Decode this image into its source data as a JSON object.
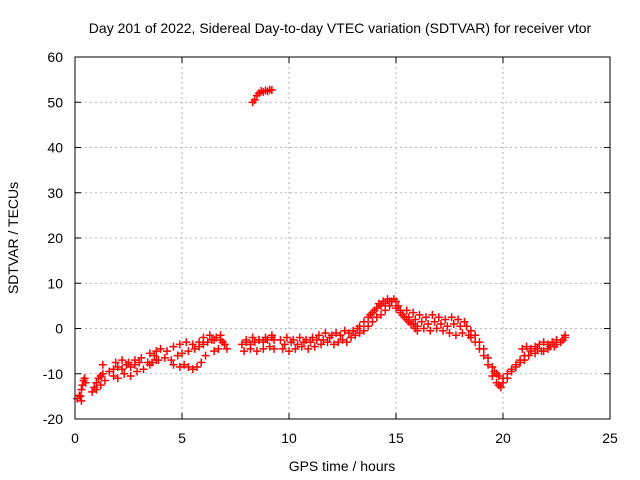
{
  "chart_data": {
    "type": "scatter",
    "title": "Day 201 of 2022, Sidereal Day-to-day VTEC variation (SDTVAR) for receiver vtor",
    "xlabel": "GPS time / hours",
    "ylabel": "SDTVAR / TECUs",
    "xlim": [
      0,
      25
    ],
    "ylim": [
      -20,
      60
    ],
    "xticks": [
      0,
      5,
      10,
      15,
      20,
      25
    ],
    "yticks": [
      -20,
      -10,
      0,
      10,
      20,
      30,
      40,
      50,
      60
    ],
    "grid": true,
    "marker": "+",
    "color": "#ff0000",
    "series": [
      {
        "name": "SDTVAR",
        "points": [
          [
            0.1,
            -15.5
          ],
          [
            0.2,
            -14.8
          ],
          [
            0.3,
            -13.5
          ],
          [
            0.35,
            -12.5
          ],
          [
            0.4,
            -11.5
          ],
          [
            0.45,
            -11.0
          ],
          [
            0.5,
            -12.0
          ],
          [
            0.3,
            -16.0
          ],
          [
            0.25,
            -15.0
          ],
          [
            0.8,
            -14.0
          ],
          [
            0.9,
            -13.0
          ],
          [
            1.0,
            -12.0
          ],
          [
            1.1,
            -11.0
          ],
          [
            1.2,
            -10.5
          ],
          [
            1.3,
            -10.0
          ],
          [
            1.0,
            -13.5
          ],
          [
            1.2,
            -12.5
          ],
          [
            1.4,
            -11.5
          ],
          [
            1.3,
            -8.0
          ],
          [
            1.6,
            -9.5
          ],
          [
            1.8,
            -9.0
          ],
          [
            2.0,
            -8.5
          ],
          [
            2.2,
            -9.0
          ],
          [
            2.4,
            -8.0
          ],
          [
            2.6,
            -8.5
          ],
          [
            2.8,
            -8.0
          ],
          [
            3.0,
            -7.5
          ],
          [
            1.8,
            -10.5
          ],
          [
            2.0,
            -11.0
          ],
          [
            2.3,
            -10.0
          ],
          [
            2.6,
            -10.5
          ],
          [
            2.9,
            -9.5
          ],
          [
            3.2,
            -9.0
          ],
          [
            3.5,
            -8.0
          ],
          [
            3.8,
            -7.0
          ],
          [
            1.9,
            -7.5
          ],
          [
            2.2,
            -7.0
          ],
          [
            2.5,
            -7.5
          ],
          [
            2.8,
            -7.0
          ],
          [
            3.1,
            -6.5
          ],
          [
            3.4,
            -7.5
          ],
          [
            3.7,
            -6.0
          ],
          [
            3.5,
            -5.5
          ],
          [
            3.8,
            -5.0
          ],
          [
            4.0,
            -4.5
          ],
          [
            4.3,
            -5.0
          ],
          [
            4.6,
            -4.0
          ],
          [
            4.9,
            -3.5
          ],
          [
            5.2,
            -3.0
          ],
          [
            5.5,
            -3.5
          ],
          [
            5.8,
            -3.0
          ],
          [
            3.6,
            -7.5
          ],
          [
            3.9,
            -7.0
          ],
          [
            4.2,
            -6.5
          ],
          [
            4.5,
            -7.0
          ],
          [
            4.8,
            -6.0
          ],
          [
            5.0,
            -5.5
          ],
          [
            5.3,
            -5.0
          ],
          [
            5.6,
            -4.5
          ],
          [
            4.6,
            -8.0
          ],
          [
            4.9,
            -8.5
          ],
          [
            5.1,
            -8.0
          ],
          [
            5.3,
            -8.5
          ],
          [
            5.5,
            -9.0
          ],
          [
            5.7,
            -8.5
          ],
          [
            5.9,
            -7.5
          ],
          [
            6.1,
            -6.0
          ],
          [
            5.8,
            -4.0
          ],
          [
            6.0,
            -3.5
          ],
          [
            6.2,
            -3.0
          ],
          [
            6.4,
            -2.5
          ],
          [
            6.6,
            -2.0
          ],
          [
            6.8,
            -1.5
          ],
          [
            6.9,
            -3.0
          ],
          [
            6.7,
            -4.5
          ],
          [
            6.5,
            -5.0
          ],
          [
            6.0,
            -2.0
          ],
          [
            6.3,
            -1.5
          ],
          [
            6.5,
            -2.5
          ],
          [
            6.8,
            -2.5
          ],
          [
            7.0,
            -3.5
          ],
          [
            7.1,
            -4.5
          ],
          [
            7.8,
            -3.5
          ],
          [
            8.0,
            -3.0
          ],
          [
            8.2,
            -3.5
          ],
          [
            8.4,
            -3.0
          ],
          [
            8.6,
            -2.5
          ],
          [
            8.8,
            -3.0
          ],
          [
            9.0,
            -2.5
          ],
          [
            9.2,
            -2.0
          ],
          [
            7.9,
            -5.0
          ],
          [
            8.2,
            -4.5
          ],
          [
            8.5,
            -5.0
          ],
          [
            8.8,
            -4.5
          ],
          [
            9.1,
            -4.0
          ],
          [
            9.3,
            -4.5
          ],
          [
            8.0,
            -2.5
          ],
          [
            8.3,
            -2.0
          ],
          [
            8.6,
            -2.5
          ],
          [
            8.9,
            -2.0
          ],
          [
            9.2,
            -1.5
          ],
          [
            9.3,
            -2.5
          ],
          [
            8.3,
            50.0
          ],
          [
            8.4,
            50.5
          ],
          [
            8.5,
            51.5
          ],
          [
            8.6,
            52.0
          ],
          [
            8.7,
            52.5
          ],
          [
            8.8,
            52.3
          ],
          [
            8.9,
            52.6
          ],
          [
            9.0,
            52.4
          ],
          [
            9.1,
            52.8
          ],
          [
            9.2,
            52.7
          ],
          [
            9.6,
            -2.5
          ],
          [
            9.9,
            -2.0
          ],
          [
            10.2,
            -2.5
          ],
          [
            10.5,
            -2.0
          ],
          [
            10.8,
            -2.5
          ],
          [
            11.1,
            -2.0
          ],
          [
            11.4,
            -1.5
          ],
          [
            11.7,
            -1.0
          ],
          [
            12.0,
            -1.5
          ],
          [
            9.7,
            -4.5
          ],
          [
            10.0,
            -5.0
          ],
          [
            10.3,
            -4.5
          ],
          [
            10.6,
            -4.0
          ],
          [
            10.9,
            -4.5
          ],
          [
            11.2,
            -4.0
          ],
          [
            11.5,
            -3.5
          ],
          [
            11.8,
            -3.0
          ],
          [
            12.1,
            -3.5
          ],
          [
            9.8,
            -3.5
          ],
          [
            10.1,
            -3.0
          ],
          [
            10.4,
            -3.5
          ],
          [
            10.7,
            -3.0
          ],
          [
            11.0,
            -3.0
          ],
          [
            11.3,
            -2.5
          ],
          [
            11.6,
            -2.5
          ],
          [
            11.9,
            -2.0
          ],
          [
            12.2,
            -1.0
          ],
          [
            12.4,
            -1.5
          ],
          [
            12.6,
            -0.5
          ],
          [
            12.8,
            -1.0
          ],
          [
            13.0,
            -0.5
          ],
          [
            13.2,
            0.0
          ],
          [
            12.3,
            -3.0
          ],
          [
            12.5,
            -2.5
          ],
          [
            12.7,
            -3.0
          ],
          [
            12.9,
            -2.0
          ],
          [
            13.1,
            -1.5
          ],
          [
            13.3,
            -1.0
          ],
          [
            13.3,
            0.5
          ],
          [
            13.5,
            1.5
          ],
          [
            13.7,
            2.5
          ],
          [
            13.9,
            3.5
          ],
          [
            14.1,
            4.5
          ],
          [
            14.3,
            5.0
          ],
          [
            14.5,
            5.5
          ],
          [
            14.7,
            6.0
          ],
          [
            14.9,
            6.5
          ],
          [
            13.5,
            -0.5
          ],
          [
            13.7,
            0.5
          ],
          [
            13.9,
            1.5
          ],
          [
            14.1,
            2.5
          ],
          [
            14.3,
            3.0
          ],
          [
            14.5,
            4.0
          ],
          [
            14.7,
            5.0
          ],
          [
            13.8,
            3.0
          ],
          [
            14.0,
            4.0
          ],
          [
            14.2,
            5.5
          ],
          [
            14.4,
            6.0
          ],
          [
            14.6,
            6.5
          ],
          [
            14.8,
            6.0
          ],
          [
            15.0,
            6.0
          ],
          [
            15.1,
            5.0
          ],
          [
            15.2,
            4.0
          ],
          [
            15.3,
            3.0
          ],
          [
            15.5,
            2.0
          ],
          [
            15.7,
            1.0
          ],
          [
            15.9,
            0.0
          ],
          [
            15.0,
            4.5
          ],
          [
            15.2,
            3.5
          ],
          [
            15.4,
            2.5
          ],
          [
            15.6,
            1.5
          ],
          [
            15.8,
            1.0
          ],
          [
            16.0,
            0.5
          ],
          [
            15.5,
            4.0
          ],
          [
            15.8,
            3.5
          ],
          [
            16.1,
            3.0
          ],
          [
            16.4,
            2.5
          ],
          [
            16.7,
            3.0
          ],
          [
            17.0,
            2.5
          ],
          [
            17.3,
            2.0
          ],
          [
            17.6,
            2.5
          ],
          [
            17.9,
            2.0
          ],
          [
            18.2,
            1.5
          ],
          [
            15.6,
            2.5
          ],
          [
            15.9,
            2.0
          ],
          [
            16.2,
            1.5
          ],
          [
            16.5,
            1.0
          ],
          [
            16.8,
            1.5
          ],
          [
            17.1,
            1.0
          ],
          [
            17.4,
            0.5
          ],
          [
            17.7,
            1.0
          ],
          [
            18.0,
            0.5
          ],
          [
            16.0,
            -0.5
          ],
          [
            16.3,
            0.0
          ],
          [
            16.6,
            -0.5
          ],
          [
            16.9,
            0.0
          ],
          [
            17.2,
            -0.5
          ],
          [
            17.5,
            -1.0
          ],
          [
            17.8,
            -1.5
          ],
          [
            18.1,
            -1.0
          ],
          [
            18.4,
            -1.5
          ],
          [
            18.3,
            0.5
          ],
          [
            18.5,
            -0.5
          ],
          [
            18.7,
            -1.5
          ],
          [
            18.9,
            -3.0
          ],
          [
            19.1,
            -4.5
          ],
          [
            19.3,
            -6.5
          ],
          [
            19.5,
            -8.5
          ],
          [
            19.7,
            -10.0
          ],
          [
            18.5,
            -2.0
          ],
          [
            18.7,
            -3.0
          ],
          [
            18.9,
            -4.5
          ],
          [
            19.1,
            -6.0
          ],
          [
            19.3,
            -8.0
          ],
          [
            19.5,
            -10.5
          ],
          [
            19.7,
            -12.0
          ],
          [
            19.9,
            -13.0
          ],
          [
            19.6,
            -9.5
          ],
          [
            19.8,
            -10.5
          ],
          [
            20.0,
            -11.0
          ],
          [
            20.2,
            -10.0
          ],
          [
            20.4,
            -9.0
          ],
          [
            20.6,
            -8.0
          ],
          [
            20.8,
            -7.0
          ],
          [
            21.0,
            -6.0
          ],
          [
            19.8,
            -12.5
          ],
          [
            20.0,
            -12.0
          ],
          [
            20.2,
            -11.0
          ],
          [
            20.4,
            -9.5
          ],
          [
            20.6,
            -8.5
          ],
          [
            20.8,
            -7.5
          ],
          [
            21.0,
            -7.0
          ],
          [
            20.9,
            -4.5
          ],
          [
            21.1,
            -4.0
          ],
          [
            21.3,
            -4.5
          ],
          [
            21.5,
            -4.0
          ],
          [
            21.7,
            -3.5
          ],
          [
            21.9,
            -3.0
          ],
          [
            22.1,
            -3.5
          ],
          [
            22.3,
            -3.0
          ],
          [
            22.5,
            -2.5
          ],
          [
            21.2,
            -6.0
          ],
          [
            21.5,
            -5.5
          ],
          [
            21.8,
            -5.0
          ],
          [
            22.1,
            -4.5
          ],
          [
            22.4,
            -4.0
          ],
          [
            22.7,
            -3.0
          ],
          [
            22.9,
            -2.0
          ],
          [
            21.3,
            -5.0
          ],
          [
            21.6,
            -4.5
          ],
          [
            21.9,
            -5.0
          ],
          [
            22.2,
            -4.0
          ],
          [
            22.5,
            -3.5
          ],
          [
            22.8,
            -2.5
          ],
          [
            22.9,
            -1.5
          ]
        ]
      }
    ]
  }
}
